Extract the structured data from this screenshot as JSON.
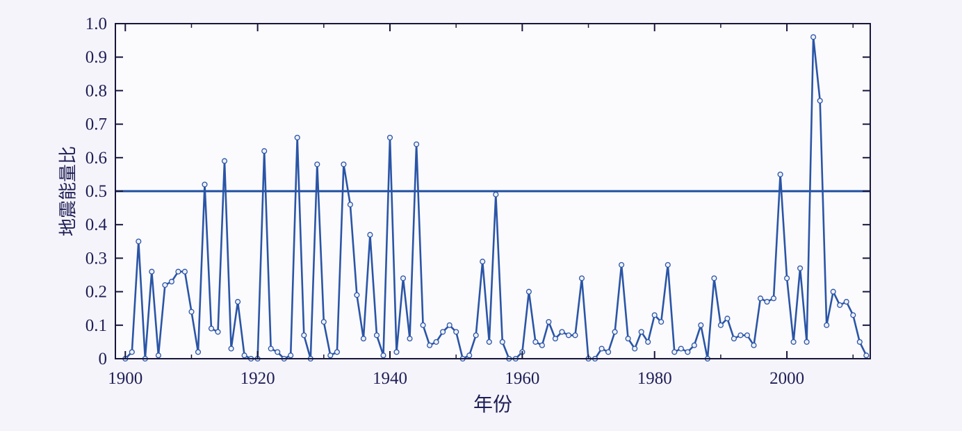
{
  "figure": {
    "background": "#f5f4fa"
  },
  "chart_data": {
    "type": "line",
    "title": "",
    "xlabel": "年份",
    "ylabel": "地震能量比",
    "xlim": [
      1898.5,
      2012.6
    ],
    "ylim": [
      0,
      1.0
    ],
    "grid": false,
    "legend": null,
    "marker": "circle-open",
    "reference_line_y": 0.5,
    "x_ticks": [
      1900,
      1920,
      1940,
      1960,
      1980,
      2000
    ],
    "x_minor_ticks": [
      1910,
      1930,
      1950,
      1970,
      1990,
      2010
    ],
    "y_tick_values": [
      0,
      0.1,
      0.2,
      0.3,
      0.4,
      0.5,
      0.6,
      0.7,
      0.8,
      0.9,
      1.0
    ],
    "y_tick_labels": [
      "0",
      "0.1",
      "0.2",
      "0.3",
      "0.4",
      "0.5",
      "0.6",
      "0.7",
      "0.8",
      "0.9",
      "1.0"
    ],
    "colors": {
      "line": "#2a55a6",
      "reference_line": "#1e4fa0",
      "marker_fill": "#eef1fa",
      "axis": "#16163c",
      "text": "#1e1e56",
      "plot_bg": "#fbfafd"
    },
    "x": [
      1900,
      1901,
      1902,
      1903,
      1904,
      1905,
      1906,
      1907,
      1908,
      1909,
      1910,
      1911,
      1912,
      1913,
      1914,
      1915,
      1916,
      1917,
      1918,
      1919,
      1920,
      1921,
      1922,
      1923,
      1924,
      1925,
      1926,
      1927,
      1928,
      1929,
      1930,
      1931,
      1932,
      1933,
      1934,
      1935,
      1936,
      1937,
      1938,
      1939,
      1940,
      1941,
      1942,
      1943,
      1944,
      1945,
      1946,
      1947,
      1948,
      1949,
      1950,
      1951,
      1952,
      1953,
      1954,
      1955,
      1956,
      1957,
      1958,
      1959,
      1960,
      1961,
      1962,
      1963,
      1964,
      1965,
      1966,
      1967,
      1968,
      1969,
      1970,
      1971,
      1972,
      1973,
      1974,
      1975,
      1976,
      1977,
      1978,
      1979,
      1980,
      1981,
      1982,
      1983,
      1984,
      1985,
      1986,
      1987,
      1988,
      1989,
      1990,
      1991,
      1992,
      1993,
      1994,
      1995,
      1996,
      1997,
      1998,
      1999,
      2000,
      2001,
      2002,
      2003,
      2004,
      2005,
      2006,
      2007,
      2008,
      2009,
      2010,
      2011,
      2012
    ],
    "values": [
      0.0,
      0.02,
      0.35,
      0.0,
      0.26,
      0.01,
      0.22,
      0.23,
      0.26,
      0.26,
      0.14,
      0.02,
      0.52,
      0.09,
      0.08,
      0.59,
      0.03,
      0.17,
      0.01,
      0.0,
      0.0,
      0.62,
      0.03,
      0.02,
      0.0,
      0.01,
      0.66,
      0.07,
      0.0,
      0.58,
      0.11,
      0.01,
      0.02,
      0.58,
      0.46,
      0.19,
      0.06,
      0.37,
      0.07,
      0.01,
      0.66,
      0.02,
      0.24,
      0.06,
      0.64,
      0.1,
      0.04,
      0.05,
      0.08,
      0.1,
      0.08,
      0.0,
      0.01,
      0.07,
      0.29,
      0.05,
      0.49,
      0.05,
      0.0,
      0.0,
      0.02,
      0.2,
      0.05,
      0.04,
      0.11,
      0.06,
      0.08,
      0.07,
      0.07,
      0.24,
      0.0,
      0.0,
      0.03,
      0.02,
      0.08,
      0.28,
      0.06,
      0.03,
      0.08,
      0.05,
      0.13,
      0.11,
      0.28,
      0.02,
      0.03,
      0.02,
      0.04,
      0.1,
      0.0,
      0.24,
      0.1,
      0.12,
      0.06,
      0.07,
      0.07,
      0.04,
      0.18,
      0.17,
      0.18,
      0.55,
      0.24,
      0.05,
      0.27,
      0.05,
      0.96,
      0.77,
      0.1,
      0.2,
      0.16,
      0.17,
      0.13,
      0.05,
      0.01
    ]
  }
}
